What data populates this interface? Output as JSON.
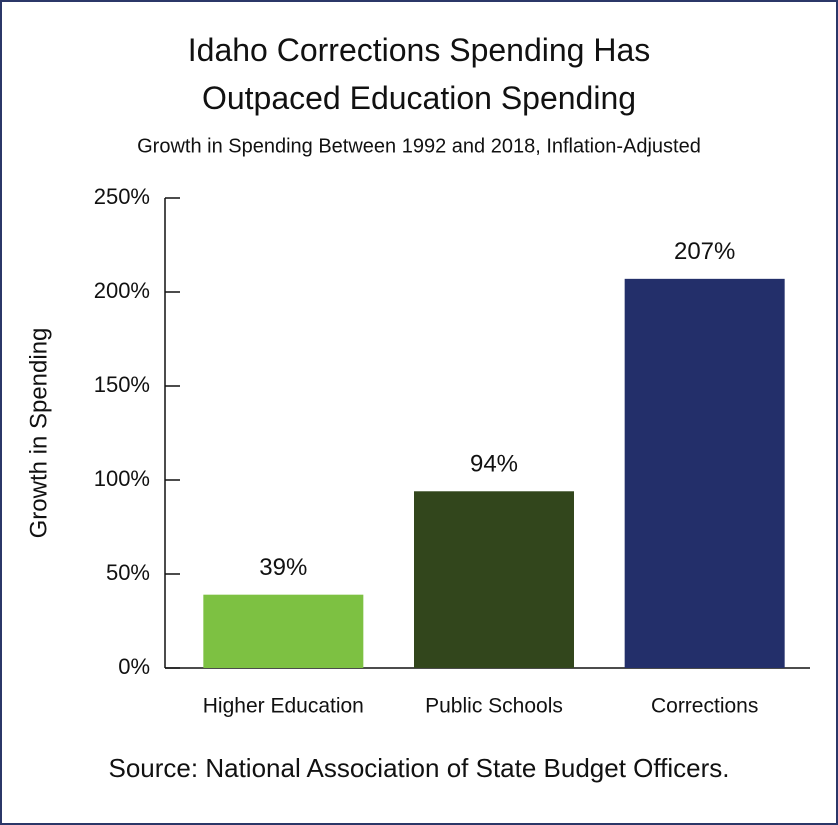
{
  "chart_data": {
    "type": "bar",
    "title": "Idaho Corrections Spending Has Outpaced Education Spending",
    "subtitle": "Growth in Spending Between 1992 and 2018, Inflation-Adjusted",
    "y_label": "Growth in Spending",
    "source": "Source: National Association of State Budget Officers.",
    "categories": [
      "Higher Education",
      "Public Schools",
      "Corrections"
    ],
    "values": [
      39,
      94,
      207
    ],
    "value_labels": [
      "39%",
      "94%",
      "207%"
    ],
    "colors": [
      "#7dc142",
      "#32461c",
      "#232f6a"
    ],
    "ylim": [
      0,
      250
    ],
    "yticks": [
      {
        "value": 0,
        "label": "0%"
      },
      {
        "value": 50,
        "label": "50%"
      },
      {
        "value": 100,
        "label": "100%"
      },
      {
        "value": 150,
        "label": "150%"
      },
      {
        "value": 200,
        "label": "200%"
      },
      {
        "value": 250,
        "label": "250%"
      }
    ],
    "grid": false
  }
}
